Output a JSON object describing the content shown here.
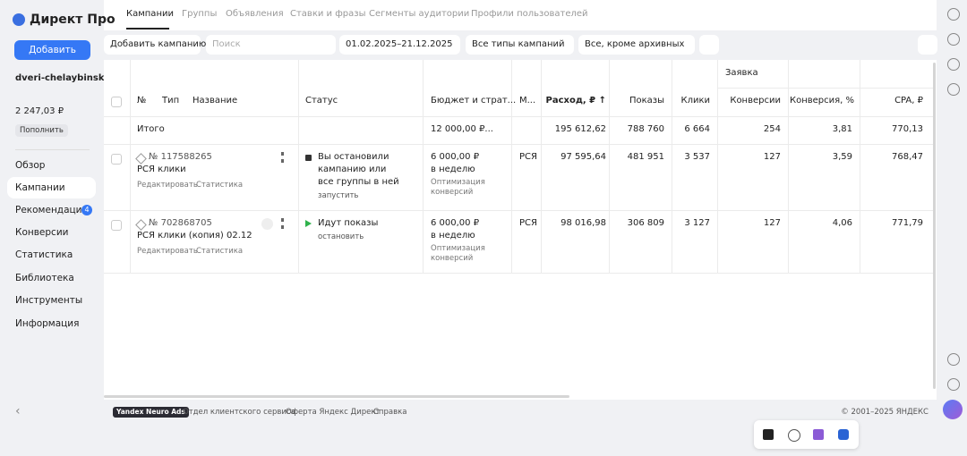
{
  "sidebar": {
    "logo": "Директ Про",
    "add_button": "Добавить",
    "account": "dveri-chelaybinsk",
    "balance": "2 247,03 ₽",
    "topup": "Пополнить",
    "nav": [
      {
        "label": "Обзор"
      },
      {
        "label": "Кампании"
      },
      {
        "label": "Рекомендации",
        "badge": "4"
      },
      {
        "label": "Конверсии"
      },
      {
        "label": "Статистика"
      },
      {
        "label": "Библиотека"
      },
      {
        "label": "Инструменты"
      },
      {
        "label": "Информация"
      }
    ]
  },
  "tabs": [
    "Кампании",
    "Группы",
    "Объявления",
    "Ставки и фразы",
    "Сегменты аудитории",
    "Профили пользователей"
  ],
  "toolbar": {
    "add_campaign": "Добавить кампанию",
    "search_placeholder": "Поиск",
    "date_range": "01.02.2025–21.12.2025",
    "type_filter": "Все типы кампаний",
    "status_filter": "Все, кроме архивных"
  },
  "table": {
    "group_header": "Заявка",
    "columns": [
      "№",
      "Тип",
      "Название",
      "Статус",
      "Бюджет и страт...",
      "М...",
      "Расход, ₽ ↑",
      "Показы",
      "Клики",
      "Конверсии",
      "Конверсия, %",
      "CPA, ₽"
    ],
    "total": {
      "label": "Итого",
      "budget": "12 000,00 ₽...",
      "spend": "195 612,62",
      "impressions": "788 760",
      "clicks": "6 664",
      "conversions": "254",
      "conv_rate": "3,81",
      "cpa": "770,13"
    },
    "rows": [
      {
        "id": "№ 117588265",
        "name": "РСЯ клики",
        "edit": "Редактировать",
        "stats": "Статистика",
        "status": "Вы остановили кампанию или все группы в ней",
        "status_action": "запустить",
        "budget": "6 000,00 ₽",
        "budget_period": "в неделю",
        "strategy": "Оптимизация конверсий",
        "network": "РСЯ",
        "spend": "97 595,64",
        "impressions": "481 951",
        "clicks": "3 537",
        "conversions": "127",
        "conv_rate": "3,59",
        "cpa": "768,47"
      },
      {
        "id": "№ 702868705",
        "name": "РСЯ клики (копия) 02.12",
        "edit": "Редактировать",
        "stats": "Статистика",
        "status": "Идут показы",
        "status_action": "остановить",
        "budget": "6 000,00 ₽",
        "budget_period": "в неделю",
        "strategy": "Оптимизация конверсий",
        "network": "РСЯ",
        "spend": "98 016,98",
        "impressions": "306 809",
        "clicks": "3 127",
        "conversions": "127",
        "conv_rate": "4,06",
        "cpa": "771,79"
      }
    ]
  },
  "footer": {
    "badge": "Yandex Neuro Ads",
    "links": [
      "Отдел клиентского сервиса",
      "Оферта Яндекс Директ",
      "Справка"
    ],
    "copyright": "© 2001–2025 ЯНДЕКС"
  }
}
